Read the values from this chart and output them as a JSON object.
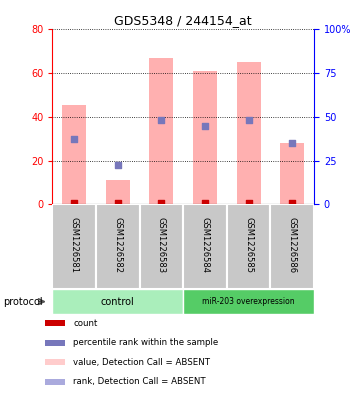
{
  "title": "GDS5348 / 244154_at",
  "samples": [
    "GSM1226581",
    "GSM1226582",
    "GSM1226583",
    "GSM1226584",
    "GSM1226585",
    "GSM1226586"
  ],
  "pink_bar_heights": [
    45.5,
    11.0,
    67.0,
    61.0,
    65.0,
    28.0
  ],
  "blue_square_y": [
    30.0,
    18.0,
    38.5,
    36.0,
    38.5,
    28.0
  ],
  "red_square_y": [
    0.8,
    0.8,
    0.8,
    0.8,
    0.8,
    0.8
  ],
  "ylim_left": [
    0,
    80
  ],
  "ylim_right": [
    0,
    100
  ],
  "yticks_left": [
    0,
    20,
    40,
    60,
    80
  ],
  "yticks_right": [
    0,
    25,
    50,
    75,
    100
  ],
  "ytick_labels_right": [
    "0",
    "25",
    "50",
    "75",
    "100%"
  ],
  "pink_color": "#FFB0B0",
  "blue_color": "#7777BB",
  "red_color": "#CC0000",
  "group1_color": "#AAEEBB",
  "group2_color": "#55CC66",
  "gray_color": "#C8C8C8",
  "leg_pink_color": "#FFCCCC",
  "leg_blue_color": "#AAAADD",
  "bar_width": 0.55
}
